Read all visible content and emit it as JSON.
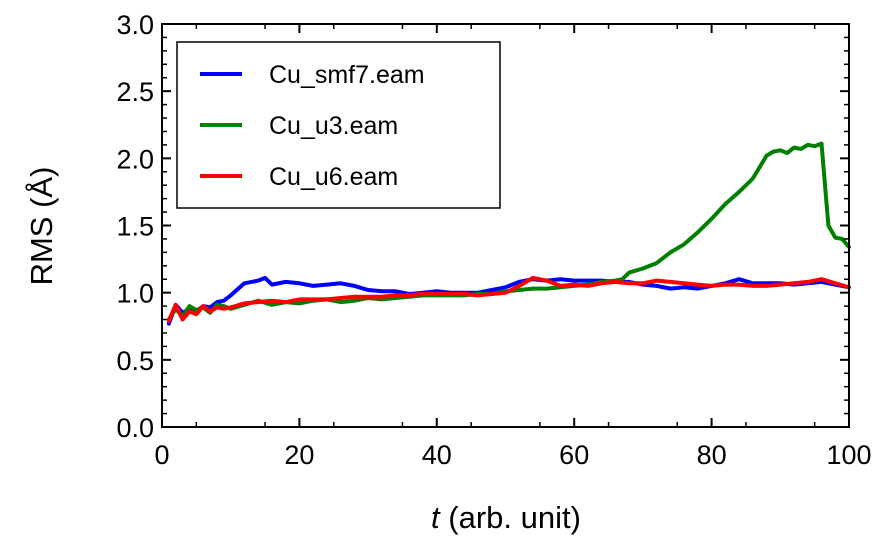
{
  "chart_data": {
    "type": "line",
    "xlabel_italic": "t",
    "xlabel_rest": " (arb. unit)",
    "ylabel": "RMS (Å)",
    "xlim": [
      0,
      100
    ],
    "ylim": [
      0.0,
      3.0
    ],
    "xticks": [
      "0",
      "20",
      "40",
      "60",
      "80",
      "100"
    ],
    "yticks": [
      "0.0",
      "0.5",
      "1.0",
      "1.5",
      "2.0",
      "2.5",
      "3.0"
    ],
    "legend_position": "top-left",
    "series": [
      {
        "name": "Cu_smf7.eam",
        "color": "#0000ff",
        "x": [
          1,
          2,
          3,
          4,
          5,
          6,
          7,
          8,
          9,
          10,
          12,
          14,
          15,
          16,
          18,
          20,
          22,
          24,
          26,
          28,
          30,
          32,
          34,
          36,
          38,
          40,
          42,
          44,
          46,
          48,
          50,
          52,
          54,
          56,
          58,
          60,
          62,
          64,
          66,
          68,
          70,
          72,
          74,
          76,
          78,
          80,
          82,
          84,
          86,
          88,
          90,
          92,
          94,
          96,
          98,
          100
        ],
        "y": [
          0.77,
          0.91,
          0.85,
          0.88,
          0.86,
          0.9,
          0.89,
          0.93,
          0.94,
          0.98,
          1.07,
          1.09,
          1.11,
          1.06,
          1.08,
          1.07,
          1.05,
          1.06,
          1.07,
          1.05,
          1.02,
          1.01,
          1.01,
          0.99,
          1.0,
          1.01,
          1.0,
          1.0,
          1.0,
          1.02,
          1.04,
          1.08,
          1.1,
          1.09,
          1.1,
          1.09,
          1.09,
          1.09,
          1.08,
          1.08,
          1.06,
          1.05,
          1.03,
          1.04,
          1.03,
          1.05,
          1.07,
          1.1,
          1.07,
          1.07,
          1.07,
          1.06,
          1.07,
          1.08,
          1.06,
          1.04
        ]
      },
      {
        "name": "Cu_u3.eam",
        "color": "#008000",
        "x": [
          1,
          2,
          3,
          4,
          5,
          6,
          7,
          8,
          9,
          10,
          12,
          14,
          16,
          18,
          20,
          22,
          24,
          26,
          28,
          30,
          32,
          34,
          36,
          38,
          40,
          42,
          44,
          46,
          48,
          50,
          52,
          54,
          56,
          58,
          60,
          62,
          64,
          66,
          67,
          68,
          70,
          72,
          74,
          76,
          78,
          80,
          82,
          84,
          86,
          88,
          89,
          90,
          91,
          92,
          93,
          94,
          95,
          96,
          97,
          98,
          99,
          100
        ],
        "y": [
          0.8,
          0.88,
          0.82,
          0.9,
          0.87,
          0.89,
          0.85,
          0.91,
          0.9,
          0.88,
          0.91,
          0.94,
          0.91,
          0.93,
          0.92,
          0.94,
          0.95,
          0.93,
          0.94,
          0.96,
          0.95,
          0.96,
          0.97,
          0.98,
          0.98,
          0.98,
          0.98,
          0.99,
          0.99,
          1.01,
          1.02,
          1.03,
          1.03,
          1.04,
          1.05,
          1.06,
          1.08,
          1.09,
          1.1,
          1.15,
          1.18,
          1.22,
          1.3,
          1.36,
          1.45,
          1.55,
          1.66,
          1.75,
          1.85,
          2.02,
          2.05,
          2.06,
          2.04,
          2.08,
          2.07,
          2.1,
          2.09,
          2.11,
          1.5,
          1.41,
          1.4,
          1.34
        ]
      },
      {
        "name": "Cu_u6.eam",
        "color": "#ff0000",
        "x": [
          1,
          2,
          3,
          4,
          5,
          6,
          7,
          8,
          9,
          10,
          12,
          14,
          16,
          18,
          20,
          22,
          24,
          26,
          28,
          30,
          32,
          34,
          36,
          38,
          40,
          42,
          44,
          46,
          48,
          50,
          52,
          54,
          56,
          58,
          60,
          62,
          64,
          66,
          68,
          70,
          72,
          74,
          76,
          78,
          80,
          82,
          84,
          86,
          88,
          90,
          92,
          94,
          96,
          98,
          100
        ],
        "y": [
          0.79,
          0.91,
          0.8,
          0.86,
          0.84,
          0.9,
          0.86,
          0.89,
          0.88,
          0.89,
          0.92,
          0.93,
          0.94,
          0.93,
          0.95,
          0.95,
          0.95,
          0.96,
          0.97,
          0.97,
          0.97,
          0.98,
          0.98,
          0.99,
          0.99,
          0.99,
          0.99,
          0.98,
          0.99,
          1.0,
          1.05,
          1.11,
          1.09,
          1.05,
          1.06,
          1.05,
          1.07,
          1.08,
          1.07,
          1.07,
          1.09,
          1.08,
          1.07,
          1.06,
          1.05,
          1.06,
          1.06,
          1.05,
          1.05,
          1.06,
          1.07,
          1.08,
          1.1,
          1.07,
          1.04
        ]
      }
    ]
  }
}
